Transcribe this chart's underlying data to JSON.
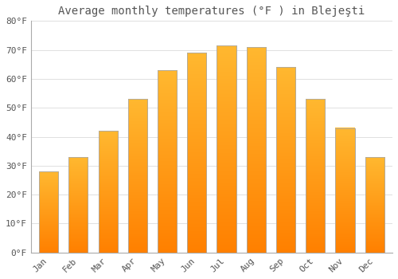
{
  "title": "Average monthly temperatures (°F ) in Blejeşti",
  "months": [
    "Jan",
    "Feb",
    "Mar",
    "Apr",
    "May",
    "Jun",
    "Jul",
    "Aug",
    "Sep",
    "Oct",
    "Nov",
    "Dec"
  ],
  "values": [
    28,
    33,
    42,
    53,
    63,
    69,
    71.5,
    71,
    64,
    53,
    43,
    33
  ],
  "bar_color_top": "#FFB300",
  "bar_color_bottom": "#FF8C00",
  "bar_edge_color": "#AAAAAA",
  "background_color": "#FFFFFF",
  "ylim": [
    0,
    80
  ],
  "yticks": [
    0,
    10,
    20,
    30,
    40,
    50,
    60,
    70,
    80
  ],
  "ytick_labels": [
    "0°F",
    "10°F",
    "20°F",
    "30°F",
    "40°F",
    "50°F",
    "60°F",
    "70°F",
    "80°F"
  ],
  "grid_color": "#E0E0E0",
  "title_fontsize": 10,
  "tick_fontsize": 8,
  "font_color": "#555555"
}
